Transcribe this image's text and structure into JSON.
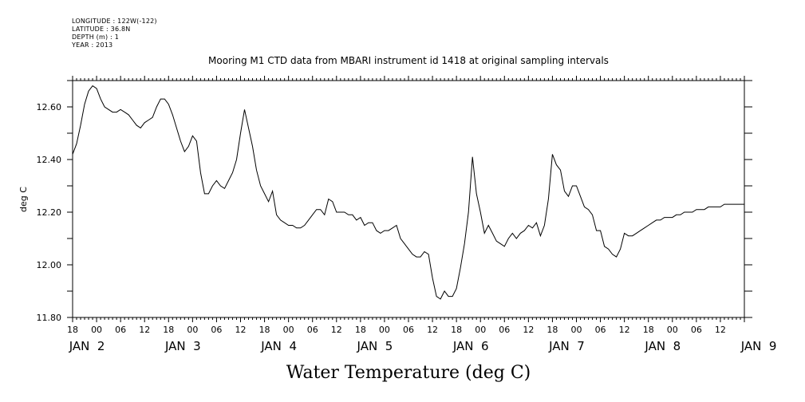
{
  "meta": {
    "longitude": "LONGITUDE : 122W(-122)",
    "latitude": "LATITUDE : 36.8N",
    "depth": "DEPTH (m) : 1",
    "year": "YEAR : 2013"
  },
  "chart_data": {
    "type": "line",
    "title": "Mooring M1 CTD data from MBARI instrument id 1418 at original sampling intervals",
    "xlabel": "Water Temperature (deg C)",
    "ylabel": "deg C",
    "ylim": [
      11.8,
      12.7
    ],
    "yticks": [
      "12.60",
      "12.40",
      "12.20",
      "12.00",
      "11.80"
    ],
    "x_unit": "hours since JAN 1 18:00 (2013)",
    "xlim": [
      0,
      168
    ],
    "xtick_labels": [
      "18",
      "00",
      "06",
      "12",
      "18",
      "00",
      "06",
      "12",
      "18",
      "00",
      "06",
      "12",
      "18",
      "00",
      "06",
      "12",
      "18",
      "00",
      "06",
      "12",
      "18",
      "00",
      "06",
      "12",
      "18",
      "00",
      "06",
      "12"
    ],
    "day_labels": [
      "JAN  2",
      "JAN  3",
      "JAN  4",
      "JAN  5",
      "JAN  6",
      "JAN  7",
      "JAN  8",
      "JAN  9"
    ],
    "series": [
      {
        "x": [
          0,
          1,
          2,
          3,
          4,
          5,
          6,
          7,
          8,
          9,
          10,
          11,
          12,
          13,
          14,
          15,
          16,
          17,
          18,
          19,
          20,
          21,
          22,
          23,
          24,
          25,
          26,
          27,
          28,
          29,
          30,
          31,
          32,
          33,
          34,
          35,
          36,
          37,
          38,
          39,
          40,
          41,
          42,
          43,
          44,
          45,
          46,
          47,
          48,
          49,
          50,
          51,
          52,
          53,
          54,
          55,
          56,
          57,
          58,
          59,
          60,
          61,
          62,
          63,
          64,
          65,
          66,
          67,
          68,
          69,
          70,
          71,
          72,
          73,
          74,
          75,
          76,
          77,
          78,
          79,
          80,
          81,
          82,
          83,
          84,
          85,
          86,
          87,
          88,
          89,
          90,
          91,
          92,
          93,
          94,
          95,
          96,
          97,
          98,
          99,
          100,
          101,
          102,
          103,
          104,
          105,
          106,
          107,
          108,
          109,
          110,
          111,
          112,
          113,
          114,
          115,
          116,
          117,
          118,
          119,
          120,
          121,
          122,
          123,
          124,
          125,
          126,
          127,
          128,
          129,
          130,
          131,
          132,
          133,
          134,
          135,
          136,
          137,
          138,
          139,
          140,
          141,
          142,
          143,
          144,
          145,
          146,
          147,
          148,
          149,
          150,
          151,
          152,
          153,
          154,
          155,
          156,
          157,
          158,
          159,
          160,
          161,
          162,
          163,
          164,
          165,
          166,
          167,
          168
        ],
        "y": [
          12.42,
          12.46,
          12.53,
          12.61,
          12.66,
          12.68,
          12.67,
          12.63,
          12.6,
          12.59,
          12.58,
          12.58,
          12.59,
          12.58,
          12.57,
          12.55,
          12.53,
          12.52,
          12.54,
          12.55,
          12.56,
          12.6,
          12.63,
          12.63,
          12.61,
          12.57,
          12.52,
          12.47,
          12.43,
          12.45,
          12.49,
          12.47,
          12.35,
          12.27,
          12.27,
          12.3,
          12.32,
          12.3,
          12.29,
          12.32,
          12.35,
          12.4,
          12.5,
          12.59,
          12.52,
          12.45,
          12.36,
          12.3,
          12.27,
          12.24,
          12.28,
          12.19,
          12.17,
          12.16,
          12.15,
          12.15,
          12.14,
          12.14,
          12.15,
          12.17,
          12.19,
          12.21,
          12.21,
          12.19,
          12.25,
          12.24,
          12.2,
          12.2,
          12.2,
          12.19,
          12.19,
          12.17,
          12.18,
          12.15,
          12.16,
          12.16,
          12.13,
          12.12,
          12.13,
          12.13,
          12.14,
          12.15,
          12.1,
          12.08,
          12.06,
          12.04,
          12.03,
          12.03,
          12.05,
          12.04,
          11.95,
          11.88,
          11.87,
          11.9,
          11.88,
          11.88,
          11.91,
          11.99,
          12.08,
          12.2,
          12.41,
          12.27,
          12.2,
          12.12,
          12.15,
          12.12,
          12.09,
          12.08,
          12.07,
          12.1,
          12.12,
          12.1,
          12.12,
          12.13,
          12.15,
          12.14,
          12.16,
          12.11,
          12.15,
          12.25,
          12.42,
          12.38,
          12.36,
          12.28,
          12.26,
          12.3,
          12.3,
          12.26,
          12.22,
          12.21,
          12.19,
          12.13,
          12.13,
          12.07,
          12.06,
          12.04,
          12.03,
          12.06,
          12.12,
          12.11,
          12.11,
          12.12,
          12.13,
          12.14,
          12.15,
          12.16,
          12.17,
          12.17,
          12.18,
          12.18,
          12.18,
          12.19,
          12.19,
          12.2,
          12.2,
          12.2,
          12.21,
          12.21,
          12.21,
          12.22,
          12.22,
          12.22,
          12.22,
          12.23,
          12.23,
          12.23,
          12.23,
          12.23,
          12.23
        ]
      }
    ]
  }
}
